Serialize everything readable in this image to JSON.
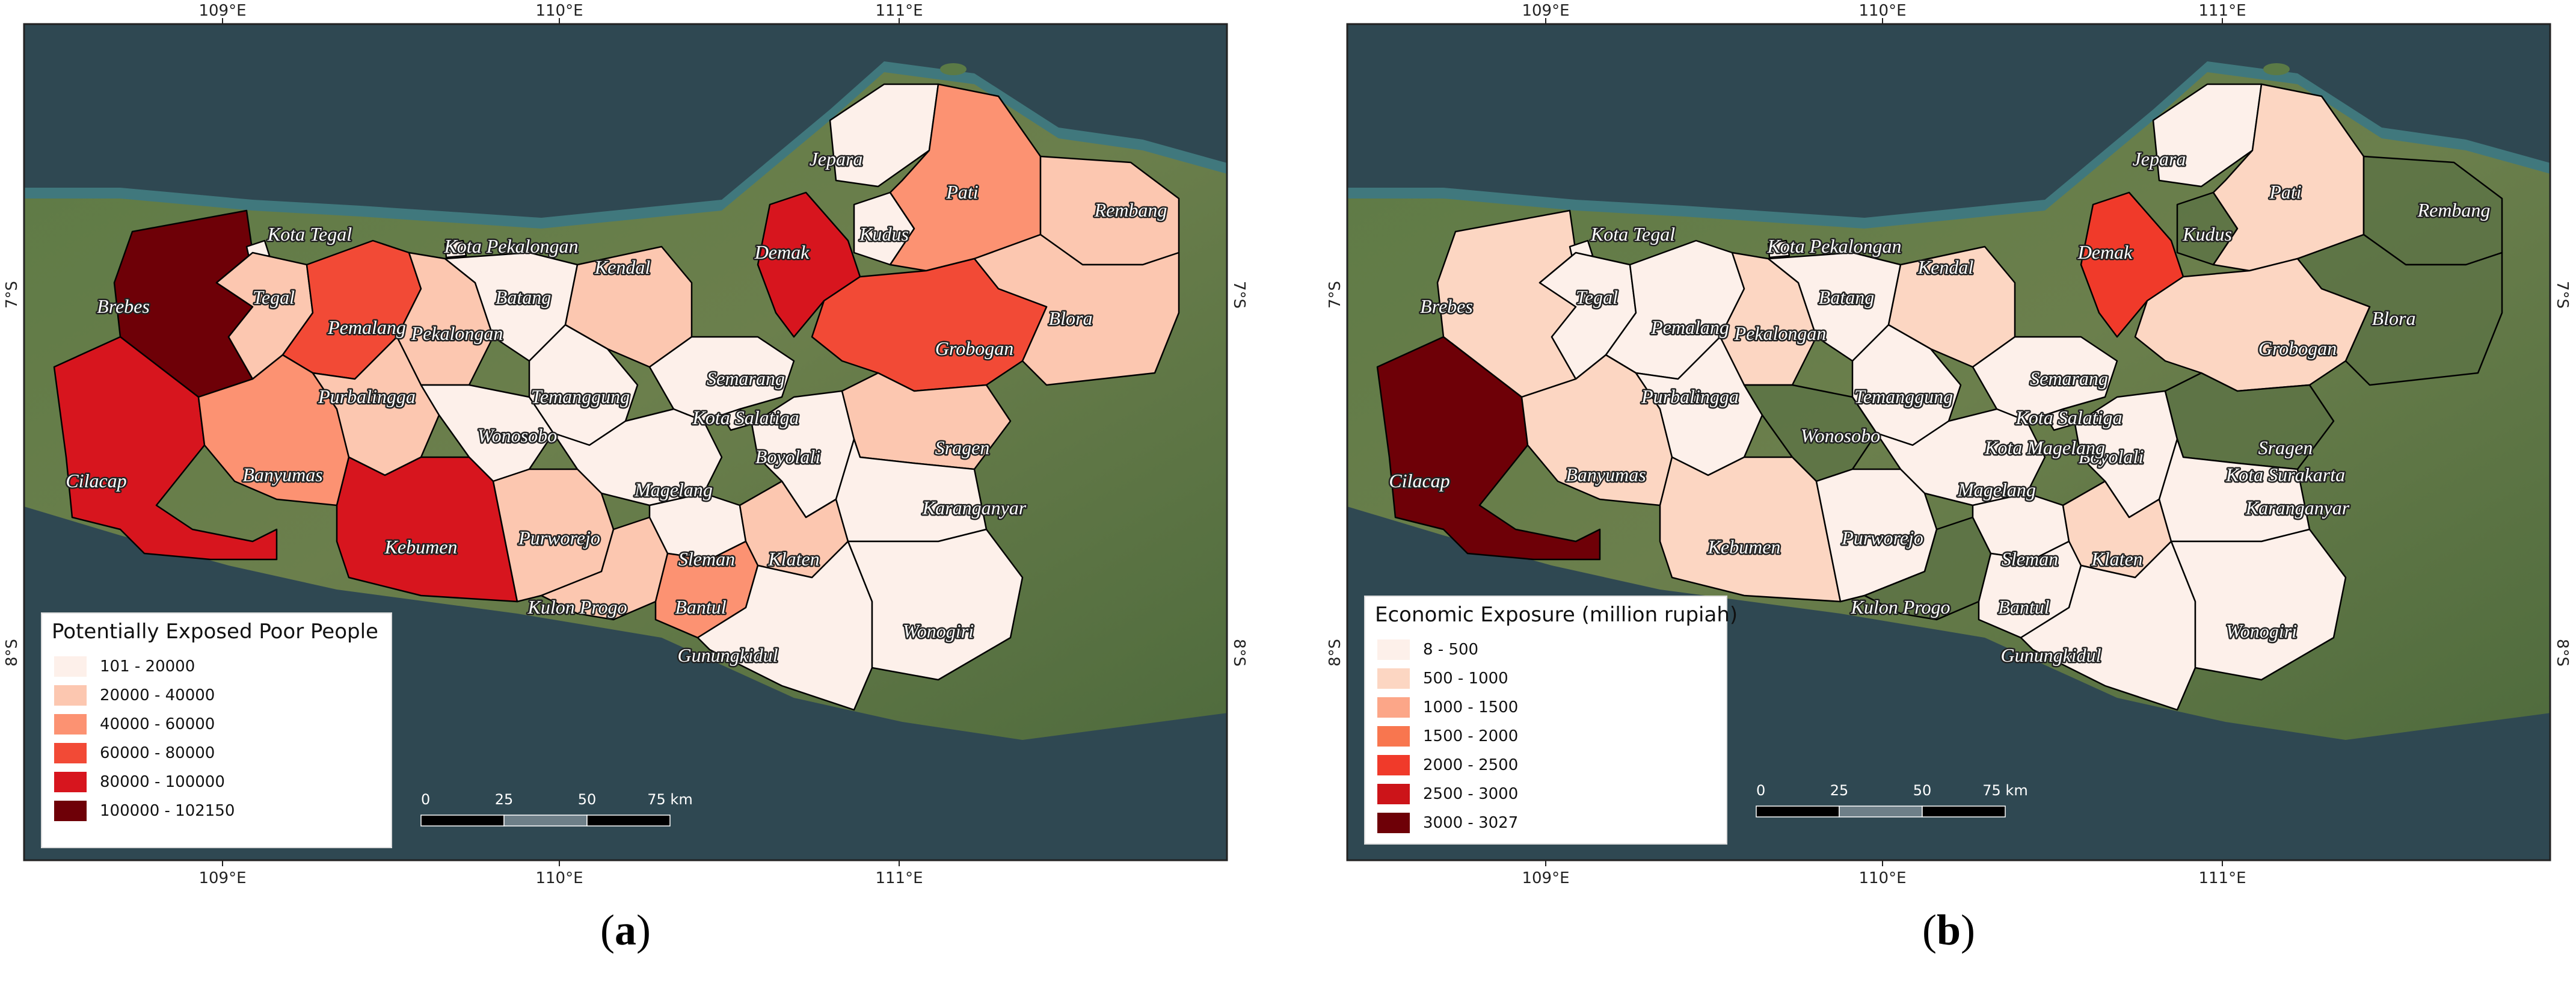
{
  "panels": [
    {
      "id": "a",
      "caption_label": "a",
      "legend": {
        "title": "Potentially Exposed Poor People",
        "items": [
          {
            "label": "101 - 20000",
            "color": "#fdf0ea"
          },
          {
            "label": "20000 - 40000",
            "color": "#fcc7b0"
          },
          {
            "label": "40000 - 60000",
            "color": "#fc9272"
          },
          {
            "label": "60000 - 80000",
            "color": "#f24a36"
          },
          {
            "label": "80000 - 100000",
            "color": "#d7151e"
          },
          {
            "label": "100000 - 102150",
            "color": "#6e0007"
          }
        ]
      },
      "scale_bar": {
        "ticks": [
          "0",
          "25",
          "50",
          "75 km"
        ]
      },
      "graticule": {
        "top": [
          "109°E",
          "110°E",
          "111°E"
        ],
        "bottom": [
          "109°E",
          "110°E",
          "111°E"
        ],
        "left": [
          "7°S",
          "8°S"
        ],
        "right": [
          "7°S",
          "8°S"
        ]
      },
      "regions": [
        {
          "name": "Brebes",
          "class": 5
        },
        {
          "name": "Kota Tegal",
          "class": 0
        },
        {
          "name": "Tegal",
          "class": 1
        },
        {
          "name": "Pemalang",
          "class": 3
        },
        {
          "name": "Kota Pekalongan",
          "class": 0
        },
        {
          "name": "Pekalongan",
          "class": 1
        },
        {
          "name": "Batang",
          "class": 0
        },
        {
          "name": "Kendal",
          "class": 1
        },
        {
          "name": "Jepara",
          "class": 0
        },
        {
          "name": "Demak",
          "class": 4
        },
        {
          "name": "Kudus",
          "class": 0
        },
        {
          "name": "Pati",
          "class": 2
        },
        {
          "name": "Rembang",
          "class": 1
        },
        {
          "name": "Blora",
          "class": 1
        },
        {
          "name": "Grobogan",
          "class": 3
        },
        {
          "name": "Cilacap",
          "class": 4
        },
        {
          "name": "Banyumas",
          "class": 2
        },
        {
          "name": "Purbalingga",
          "class": 1
        },
        {
          "name": "Temanggung",
          "class": 0
        },
        {
          "name": "Wonosobo",
          "class": 0
        },
        {
          "name": "Semarang",
          "class": 0
        },
        {
          "name": "Kota Salatiga",
          "class": 0
        },
        {
          "name": "Boyolali",
          "class": 0
        },
        {
          "name": "Sragen",
          "class": 1
        },
        {
          "name": "Magelang",
          "class": 0
        },
        {
          "name": "Kebumen",
          "class": 4
        },
        {
          "name": "Purworejo",
          "class": 1
        },
        {
          "name": "Kulon Progo",
          "class": 1
        },
        {
          "name": "Sleman",
          "class": 0
        },
        {
          "name": "Klaten",
          "class": 1
        },
        {
          "name": "Bantul",
          "class": 2
        },
        {
          "name": "Gunungkidul",
          "class": 0
        },
        {
          "name": "Karanganyar",
          "class": 0
        },
        {
          "name": "Wonogiri",
          "class": 0
        }
      ]
    },
    {
      "id": "b",
      "caption_label": "b",
      "legend": {
        "title": "Economic Exposure (million rupiah)",
        "items": [
          {
            "label": "8 - 500",
            "color": "#fdf0ea"
          },
          {
            "label": "500 - 1000",
            "color": "#fcd6c2"
          },
          {
            "label": "1000 - 1500",
            "color": "#fca688"
          },
          {
            "label": "1500 - 2000",
            "color": "#f8764f"
          },
          {
            "label": "2000 - 2500",
            "color": "#f03a2a"
          },
          {
            "label": "2500 - 3000",
            "color": "#cc1419"
          },
          {
            "label": "3000 - 3027",
            "color": "#6e0007"
          }
        ]
      },
      "scale_bar": {
        "ticks": [
          "0",
          "25",
          "50",
          "75 km"
        ]
      },
      "graticule": {
        "top": [
          "109°E",
          "110°E",
          "111°E"
        ],
        "bottom": [
          "109°E",
          "110°E",
          "111°E"
        ],
        "left": [
          "7°S",
          "8°S"
        ],
        "right": [
          "7°S",
          "8°S"
        ]
      },
      "regions": [
        {
          "name": "Brebes",
          "class": 1
        },
        {
          "name": "Kota Tegal",
          "class": 0
        },
        {
          "name": "Tegal",
          "class": 0
        },
        {
          "name": "Pemalang",
          "class": 0
        },
        {
          "name": "Kota Pekalongan",
          "class": 0
        },
        {
          "name": "Pekalongan",
          "class": 1
        },
        {
          "name": "Batang",
          "class": 0
        },
        {
          "name": "Kendal",
          "class": 1
        },
        {
          "name": "Jepara",
          "class": 0
        },
        {
          "name": "Demak",
          "class": 4
        },
        {
          "name": "Kudus",
          "class": -1
        },
        {
          "name": "Pati",
          "class": 1
        },
        {
          "name": "Rembang",
          "class": -1
        },
        {
          "name": "Blora",
          "class": -1
        },
        {
          "name": "Grobogan",
          "class": 1
        },
        {
          "name": "Cilacap",
          "class": 6
        },
        {
          "name": "Banyumas",
          "class": 1
        },
        {
          "name": "Purbalingga",
          "class": 0
        },
        {
          "name": "Temanggung",
          "class": 0
        },
        {
          "name": "Wonosobo",
          "class": -1
        },
        {
          "name": "Semarang",
          "class": 0
        },
        {
          "name": "Kota Salatiga",
          "class": 0
        },
        {
          "name": "Boyolali",
          "class": 0
        },
        {
          "name": "Sragen",
          "class": -1
        },
        {
          "name": "Kota Magelang",
          "class": 0
        },
        {
          "name": "Magelang",
          "class": 0
        },
        {
          "name": "Kota Surakarta",
          "class": 0
        },
        {
          "name": "Kebumen",
          "class": 1
        },
        {
          "name": "Purworejo",
          "class": 0
        },
        {
          "name": "Kulon Progo",
          "class": -1
        },
        {
          "name": "Sleman",
          "class": 0
        },
        {
          "name": "Klaten",
          "class": 1
        },
        {
          "name": "Bantul",
          "class": 0
        },
        {
          "name": "Gunungkidul",
          "class": 0
        },
        {
          "name": "Karanganyar",
          "class": 0
        },
        {
          "name": "Wonogiri",
          "class": 0
        }
      ]
    }
  ]
}
